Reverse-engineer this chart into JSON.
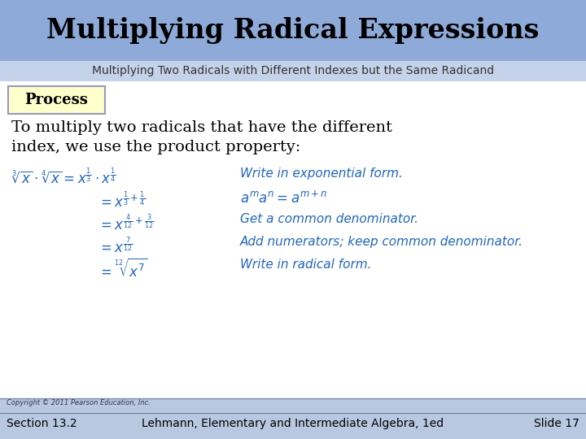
{
  "title": "Multiplying Radical Expressions",
  "subtitle": "Multiplying Two Radicals with Different Indexes but the Same Radicand",
  "title_bg": "#8eaad8",
  "subtitle_bg": "#c5d3ea",
  "body_bg": "#ffffff",
  "process_label": "Process",
  "process_box_bg": "#ffffcc",
  "process_box_edge": "#9999bb",
  "body_text_color": "#000000",
  "math_color": "#2266bb",
  "annotation_color": "#2266bb",
  "title_color": "#000000",
  "subtitle_color": "#333333",
  "footer_left1": "Copyright © 2011 Pearson Education, Inc.",
  "footer_left2": "Section 13.2",
  "footer_center": "Lehmann, Elementary and Intermediate Algebra, 1ed",
  "footer_right": "Slide 17",
  "footer_bg": "#b8c8e0"
}
